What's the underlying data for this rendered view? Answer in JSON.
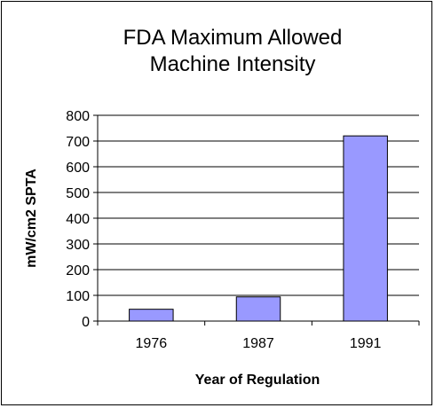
{
  "chart_data": {
    "type": "bar",
    "title_lines": [
      "FDA Maximum Allowed",
      "Machine Intensity"
    ],
    "categories": [
      "1976",
      "1987",
      "1991"
    ],
    "values": [
      46,
      94,
      720
    ],
    "xlabel": "Year of Regulation",
    "ylabel": "mW/cm2 SPTA",
    "ylim": [
      0,
      800
    ],
    "yticks": [
      0,
      100,
      200,
      300,
      400,
      500,
      600,
      700,
      800
    ],
    "grid": true,
    "legend": "none",
    "bar_color": "#9999ff",
    "bar_edge_color": "#000000"
  }
}
